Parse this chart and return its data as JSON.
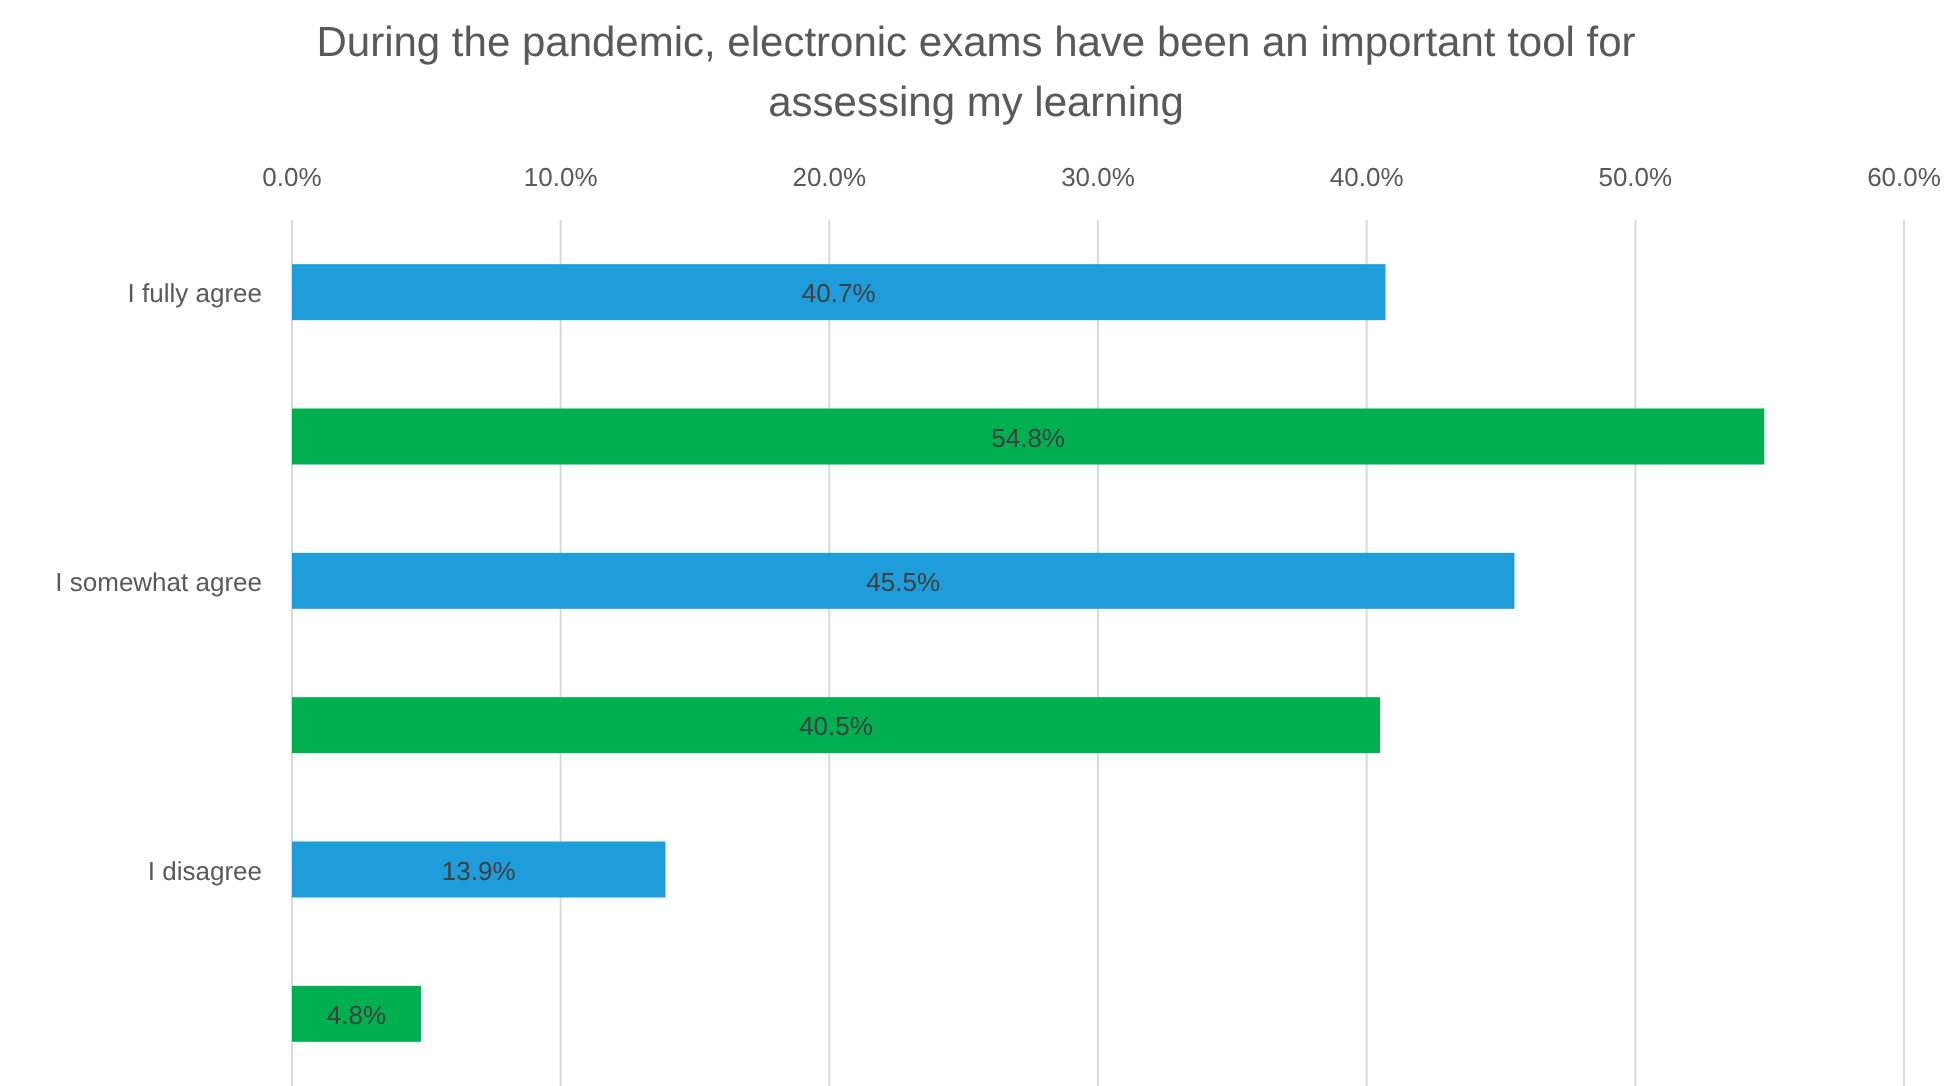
{
  "chart_data": {
    "type": "bar",
    "orientation": "horizontal",
    "title": "During the pandemic, electronic exams have been an important tool for assessing my learning",
    "categories": [
      "I fully agree",
      null,
      "I somewhat agree",
      null,
      "I disagree",
      null
    ],
    "values": [
      40.7,
      54.8,
      45.5,
      40.5,
      13.9,
      4.8
    ],
    "colors": [
      "#1f9ddb",
      "#00b050",
      "#1f9ddb",
      "#00b050",
      "#1f9ddb",
      "#00b050"
    ],
    "value_labels": [
      "40.7%",
      "54.8%",
      "45.5%",
      "40.5%",
      "13.9%",
      "4.8%"
    ],
    "xlim": [
      0,
      60
    ],
    "xticks": [
      {
        "value": 0,
        "label": "0.0%"
      },
      {
        "value": 10,
        "label": "10.0%"
      },
      {
        "value": 20,
        "label": "20.0%"
      },
      {
        "value": 30,
        "label": "30.0%"
      },
      {
        "value": 40,
        "label": "40.0%"
      },
      {
        "value": 50,
        "label": "50.0%"
      },
      {
        "value": 60,
        "label": "60.0%"
      }
    ],
    "grid": "x"
  }
}
